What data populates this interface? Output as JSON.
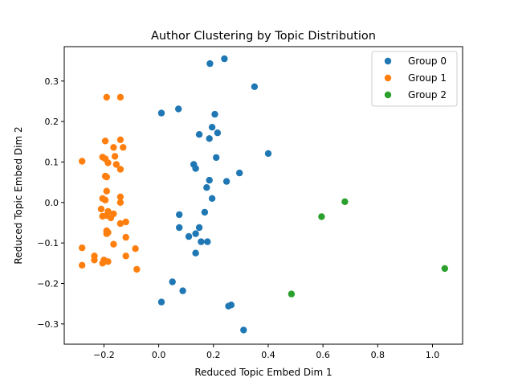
{
  "chart_data": {
    "type": "scatter",
    "title": "Author Clustering by Topic Distribution",
    "xlabel": "Reduced Topic Embed Dim 1",
    "ylabel": "Reduced Topic Embed Dim 2",
    "xlim": [
      -0.345,
      1.11
    ],
    "ylim": [
      -0.35,
      0.385
    ],
    "xticks": [
      {
        "v": -0.2,
        "label": "−0.2"
      },
      {
        "v": 0.0,
        "label": "0.0"
      },
      {
        "v": 0.2,
        "label": "0.2"
      },
      {
        "v": 0.4,
        "label": "0.4"
      },
      {
        "v": 0.6,
        "label": "0.6"
      },
      {
        "v": 0.8,
        "label": "0.8"
      },
      {
        "v": 1.0,
        "label": "1.0"
      }
    ],
    "yticks": [
      {
        "v": -0.3,
        "label": "−0.3"
      },
      {
        "v": -0.2,
        "label": "−0.2"
      },
      {
        "v": -0.1,
        "label": "−0.1"
      },
      {
        "v": 0.0,
        "label": "0.0"
      },
      {
        "v": 0.1,
        "label": "0.1"
      },
      {
        "v": 0.2,
        "label": "0.2"
      },
      {
        "v": 0.3,
        "label": "0.3"
      }
    ],
    "grid": false,
    "legend": "top-right",
    "series": [
      {
        "name": "Group 0",
        "color": "#1f77b4",
        "points": [
          [
            0.24,
            0.355
          ],
          [
            0.187,
            0.343
          ],
          [
            0.35,
            0.286
          ],
          [
            0.072,
            0.231
          ],
          [
            0.01,
            0.221
          ],
          [
            0.205,
            0.218
          ],
          [
            0.195,
            0.186
          ],
          [
            0.215,
            0.172
          ],
          [
            0.148,
            0.168
          ],
          [
            0.185,
            0.158
          ],
          [
            0.4,
            0.121
          ],
          [
            0.21,
            0.111
          ],
          [
            0.128,
            0.094
          ],
          [
            0.135,
            0.084
          ],
          [
            0.295,
            0.073
          ],
          [
            0.185,
            0.055
          ],
          [
            0.248,
            0.052
          ],
          [
            0.175,
            0.037
          ],
          [
            0.195,
            0.01
          ],
          [
            0.168,
            -0.024
          ],
          [
            0.075,
            -0.03
          ],
          [
            0.075,
            -0.062
          ],
          [
            0.148,
            -0.062
          ],
          [
            0.135,
            -0.077
          ],
          [
            0.11,
            -0.084
          ],
          [
            0.155,
            -0.097
          ],
          [
            0.178,
            -0.097
          ],
          [
            0.135,
            -0.125
          ],
          [
            0.05,
            -0.196
          ],
          [
            0.088,
            -0.218
          ],
          [
            0.01,
            -0.246
          ],
          [
            0.265,
            -0.253
          ],
          [
            0.255,
            -0.256
          ],
          [
            0.31,
            -0.315
          ]
        ]
      },
      {
        "name": "Group 1",
        "color": "#ff7f0e",
        "points": [
          [
            -0.19,
            0.26
          ],
          [
            -0.14,
            0.26
          ],
          [
            -0.14,
            0.155
          ],
          [
            -0.195,
            0.152
          ],
          [
            -0.13,
            0.136
          ],
          [
            -0.165,
            0.136
          ],
          [
            -0.16,
            0.114
          ],
          [
            -0.205,
            0.112
          ],
          [
            -0.195,
            0.108
          ],
          [
            -0.28,
            0.102
          ],
          [
            -0.185,
            0.098
          ],
          [
            -0.155,
            0.094
          ],
          [
            -0.14,
            0.082
          ],
          [
            -0.195,
            0.065
          ],
          [
            -0.19,
            0.063
          ],
          [
            -0.19,
            0.028
          ],
          [
            -0.14,
            0.014
          ],
          [
            -0.205,
            0.01
          ],
          [
            -0.195,
            0.006
          ],
          [
            -0.14,
            0.0
          ],
          [
            -0.21,
            -0.016
          ],
          [
            -0.185,
            -0.022
          ],
          [
            -0.165,
            -0.028
          ],
          [
            -0.19,
            -0.032
          ],
          [
            -0.205,
            -0.034
          ],
          [
            -0.175,
            -0.038
          ],
          [
            -0.12,
            -0.048
          ],
          [
            -0.14,
            -0.052
          ],
          [
            -0.19,
            -0.07
          ],
          [
            -0.185,
            -0.074
          ],
          [
            -0.19,
            -0.077
          ],
          [
            -0.12,
            -0.086
          ],
          [
            -0.165,
            -0.103
          ],
          [
            -0.28,
            -0.112
          ],
          [
            -0.085,
            -0.114
          ],
          [
            -0.235,
            -0.132
          ],
          [
            -0.12,
            -0.132
          ],
          [
            -0.235,
            -0.142
          ],
          [
            -0.2,
            -0.142
          ],
          [
            -0.185,
            -0.146
          ],
          [
            -0.205,
            -0.15
          ],
          [
            -0.28,
            -0.155
          ],
          [
            -0.08,
            -0.165
          ]
        ]
      },
      {
        "name": "Group 2",
        "color": "#2ca02c",
        "points": [
          [
            0.68,
            0.002
          ],
          [
            0.595,
            -0.035
          ],
          [
            0.485,
            -0.226
          ],
          [
            1.045,
            -0.163
          ]
        ]
      }
    ]
  }
}
